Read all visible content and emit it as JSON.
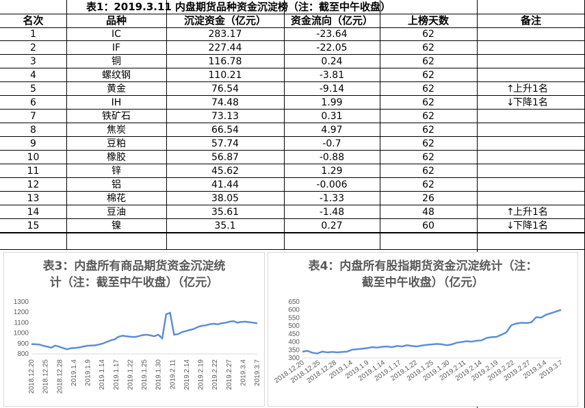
{
  "table": {
    "title": "表1：2019.3.11 内盘期货品种资金沉淀榜（注：截至中午收盘）",
    "headers": [
      "名次",
      "品种",
      "沉淀资金（亿元）",
      "资金流向（亿元）",
      "上榜天数",
      "备注"
    ],
    "rows": [
      {
        "rank": "1",
        "name": "IC",
        "capital": "283.17",
        "flow": "-23.64",
        "days": "62",
        "note": ""
      },
      {
        "rank": "2",
        "name": "IF",
        "capital": "227.44",
        "flow": "-22.05",
        "days": "62",
        "note": ""
      },
      {
        "rank": "3",
        "name": "铜",
        "capital": "116.78",
        "flow": "0.24",
        "days": "62",
        "note": ""
      },
      {
        "rank": "4",
        "name": "螺纹钢",
        "capital": "110.21",
        "flow": "-3.81",
        "days": "62",
        "note": ""
      },
      {
        "rank": "5",
        "name": "黄金",
        "capital": "76.54",
        "flow": "-9.14",
        "days": "62",
        "note": "上升1名",
        "dir": "up"
      },
      {
        "rank": "6",
        "name": "IH",
        "capital": "74.48",
        "flow": "1.99",
        "days": "62",
        "note": "下降1名",
        "dir": "down"
      },
      {
        "rank": "7",
        "name": "铁矿石",
        "capital": "73.13",
        "flow": "0.31",
        "days": "62",
        "note": ""
      },
      {
        "rank": "8",
        "name": "焦炭",
        "capital": "66.54",
        "flow": "4.97",
        "days": "62",
        "note": ""
      },
      {
        "rank": "9",
        "name": "豆粕",
        "capital": "57.74",
        "flow": "-0.7",
        "days": "62",
        "note": ""
      },
      {
        "rank": "10",
        "name": "橡胶",
        "capital": "56.87",
        "flow": "-0.88",
        "days": "62",
        "note": ""
      },
      {
        "rank": "11",
        "name": "锌",
        "capital": "45.62",
        "flow": "1.29",
        "days": "62",
        "note": ""
      },
      {
        "rank": "12",
        "name": "铝",
        "capital": "41.44",
        "flow": "-0.006",
        "days": "62",
        "note": ""
      },
      {
        "rank": "13",
        "name": "棉花",
        "capital": "38.05",
        "flow": "-1.33",
        "days": "26",
        "note": ""
      },
      {
        "rank": "14",
        "name": "豆油",
        "capital": "35.61",
        "flow": "-1.48",
        "days": "48",
        "note": "上升1名",
        "dir": "up"
      },
      {
        "rank": "15",
        "name": "镍",
        "capital": "35.1",
        "flow": "0.27",
        "days": "60",
        "note": "下降1名",
        "dir": "down"
      }
    ]
  },
  "chart_data": [
    {
      "type": "line",
      "title": "表3：内盘所有商品期货资金沉淀统计（注：截至中午收盘）（亿元）",
      "color": "#5b8ed6",
      "ylim": [
        800,
        1300
      ],
      "yticks": [
        800,
        900,
        1000,
        1100,
        1200,
        1300
      ],
      "xtick_labels": [
        "2018.12.20",
        "2018.12.25",
        "2018.12.28",
        "2019.1.4",
        "2019.1.9",
        "2019.1.14",
        "2019.1.17",
        "2019.1.22",
        "2019.1.25",
        "2019.1.30",
        "2019.2.11",
        "2019.2.14",
        "2019.2.19",
        "2019.2.22",
        "2019.2.27",
        "2019.3.4",
        "2019.3.7"
      ],
      "values": [
        895,
        893,
        890,
        878,
        870,
        860,
        880,
        870,
        855,
        845,
        855,
        858,
        862,
        870,
        878,
        880,
        882,
        890,
        900,
        915,
        930,
        940,
        965,
        975,
        970,
        965,
        962,
        970,
        980,
        985,
        978,
        970,
        985,
        950,
        1180,
        1195,
        985,
        990,
        1010,
        1020,
        1030,
        1040,
        1060,
        1070,
        1075,
        1085,
        1090,
        1085,
        1095,
        1100,
        1110,
        1115,
        1100,
        1108,
        1110,
        1105,
        1100,
        1095
      ]
    },
    {
      "type": "line",
      "title": "表4：内盘所有股指期货资金沉淀统计（注：截至中午收盘）（亿元）",
      "color": "#5b8ed6",
      "ylim": [
        300,
        650
      ],
      "yticks": [
        300,
        350,
        400,
        450,
        500,
        550,
        600,
        650
      ],
      "xtick_labels": [
        "2018.12.20",
        "2018.12.25",
        "2018.12.28",
        "2019.1.4",
        "2019.1.9",
        "2019.1.14",
        "2019.1.17",
        "2019.1.22",
        "2019.1.25",
        "2019.1.30",
        "2019.2.11",
        "2019.2.14",
        "2019.2.19",
        "2019.2.22",
        "2019.2.27",
        "2019.3.4",
        "2019.3.7"
      ],
      "values": [
        340,
        345,
        333,
        328,
        340,
        335,
        338,
        335,
        338,
        340,
        352,
        355,
        358,
        362,
        368,
        365,
        370,
        372,
        368,
        375,
        372,
        380,
        375,
        372,
        378,
        382,
        385,
        388,
        386,
        380,
        385,
        395,
        400,
        405,
        402,
        408,
        410,
        425,
        430,
        432,
        445,
        460,
        505,
        515,
        520,
        518,
        522,
        555,
        552,
        570,
        580,
        590,
        600
      ]
    }
  ],
  "charts": {
    "c3_title_line1": "表3：内盘所有商品期货资金沉淀统",
    "c3_title_line2": "计（注：截至中午收盘）（亿元）",
    "c4_title_line1": "表4：内盘所有股指期货资金沉淀统计（注：",
    "c4_title_line2": "截至中午收盘）（亿元）"
  }
}
